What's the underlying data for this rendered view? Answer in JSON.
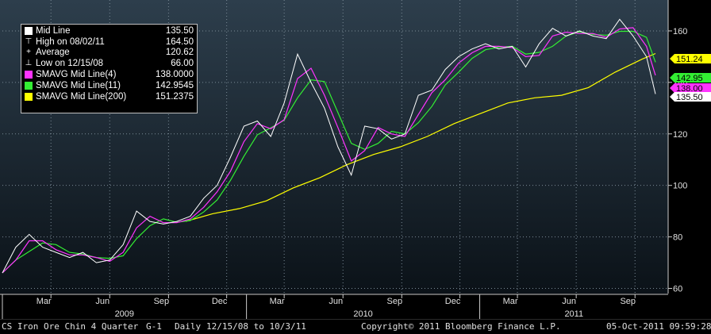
{
  "chart_data": {
    "type": "line",
    "ylim": [
      58,
      172
    ],
    "y_ticks": [
      60,
      80,
      100,
      120,
      140,
      160
    ],
    "x_month_labels": [
      "Mar",
      "Jun",
      "Sep",
      "Dec",
      "Mar",
      "Jun",
      "Sep",
      "Dec",
      "Mar",
      "Jun",
      "Sep"
    ],
    "x_year_labels": [
      "2009",
      "2010",
      "2011"
    ],
    "x_range": [
      "2008-12-15",
      "2011-10-03"
    ],
    "legend_placement": "top-left",
    "legend": [
      {
        "label": "Mid Line",
        "value": "135.50",
        "marker": "swatch",
        "color": "#ffffff"
      },
      {
        "label": "High on 08/02/11",
        "value": "164.50",
        "marker": "high"
      },
      {
        "label": "Average",
        "value": "120.62",
        "marker": "avg"
      },
      {
        "label": "Low on 12/15/08",
        "value": "66.00",
        "marker": "low"
      },
      {
        "label": "SMAVG Mid Line(4)",
        "value": "138.0000",
        "marker": "swatch",
        "color": "#ff33ff"
      },
      {
        "label": "SMAVG Mid Line(11)",
        "value": "142.9545",
        "marker": "swatch",
        "color": "#33ee33"
      },
      {
        "label": "SMAVG Mid Line(200)",
        "value": "151.2375",
        "marker": "swatch",
        "color": "#ffff00"
      }
    ],
    "value_tags": [
      {
        "text": "151.24",
        "value": 151.24,
        "color": "#ffff00"
      },
      {
        "text": "142.95",
        "value": 142.95,
        "color": "#33ee33"
      },
      {
        "text": "138.00",
        "value": 138.0,
        "color": "#ff33ff"
      },
      {
        "text": "135.50",
        "value": 135.5,
        "color": "#ffffff"
      }
    ],
    "series": [
      {
        "name": "Mid Line",
        "color": "#ffffff",
        "x": [
          "2008-12-15",
          "2009-01-05",
          "2009-01-26",
          "2009-02-16",
          "2009-03-09",
          "2009-03-30",
          "2009-04-20",
          "2009-05-11",
          "2009-06-01",
          "2009-06-22",
          "2009-07-13",
          "2009-08-03",
          "2009-08-24",
          "2009-09-14",
          "2009-10-05",
          "2009-10-26",
          "2009-11-16",
          "2009-12-07",
          "2009-12-28",
          "2010-01-18",
          "2010-02-08",
          "2010-03-01",
          "2010-03-22",
          "2010-04-12",
          "2010-05-03",
          "2010-05-24",
          "2010-06-14",
          "2010-07-05",
          "2010-07-26",
          "2010-08-16",
          "2010-09-06",
          "2010-09-27",
          "2010-10-18",
          "2010-11-08",
          "2010-11-29",
          "2010-12-20",
          "2011-01-10",
          "2011-01-31",
          "2011-02-21",
          "2011-03-14",
          "2011-04-04",
          "2011-04-25",
          "2011-05-16",
          "2011-06-06",
          "2011-06-27",
          "2011-07-18",
          "2011-08-08",
          "2011-08-29",
          "2011-09-19",
          "2011-10-03"
        ],
        "values": [
          66,
          76,
          81,
          76,
          74,
          72,
          74,
          70,
          71,
          77,
          90,
          86,
          85,
          86,
          88,
          95,
          100,
          111,
          123,
          125,
          119,
          132,
          151,
          140,
          130,
          115,
          104,
          123,
          122,
          118,
          120,
          135,
          137,
          145,
          150,
          153,
          155,
          153,
          154,
          146,
          155,
          161,
          158,
          160,
          158,
          157,
          164.5,
          158,
          150,
          135.5
        ]
      },
      {
        "name": "SMAVG Mid Line(200)",
        "color": "#ffff00",
        "x": [
          "2009-09-28",
          "2009-11-09",
          "2009-12-21",
          "2010-02-01",
          "2010-03-15",
          "2010-04-26",
          "2010-06-07",
          "2010-07-19",
          "2010-08-30",
          "2010-10-11",
          "2010-11-22",
          "2011-01-03",
          "2011-02-14",
          "2011-03-28",
          "2011-05-09",
          "2011-06-20",
          "2011-08-01",
          "2011-09-12",
          "2011-10-03"
        ],
        "values": [
          86,
          89,
          91,
          94,
          99,
          103,
          108,
          112,
          115,
          119,
          124,
          128,
          132,
          134,
          135,
          138,
          144,
          149,
          151.2
        ]
      }
    ]
  },
  "footer": {
    "ticker": "CS Iron Ore Chin 4 Quarter",
    "page": "G-1",
    "period": "Daily",
    "range": "12/15/08 to 10/3/11",
    "copyright": "Copyright© 2011 Bloomberg Finance L.P.",
    "timestamp": "05-Oct-2011 09:59:28"
  }
}
